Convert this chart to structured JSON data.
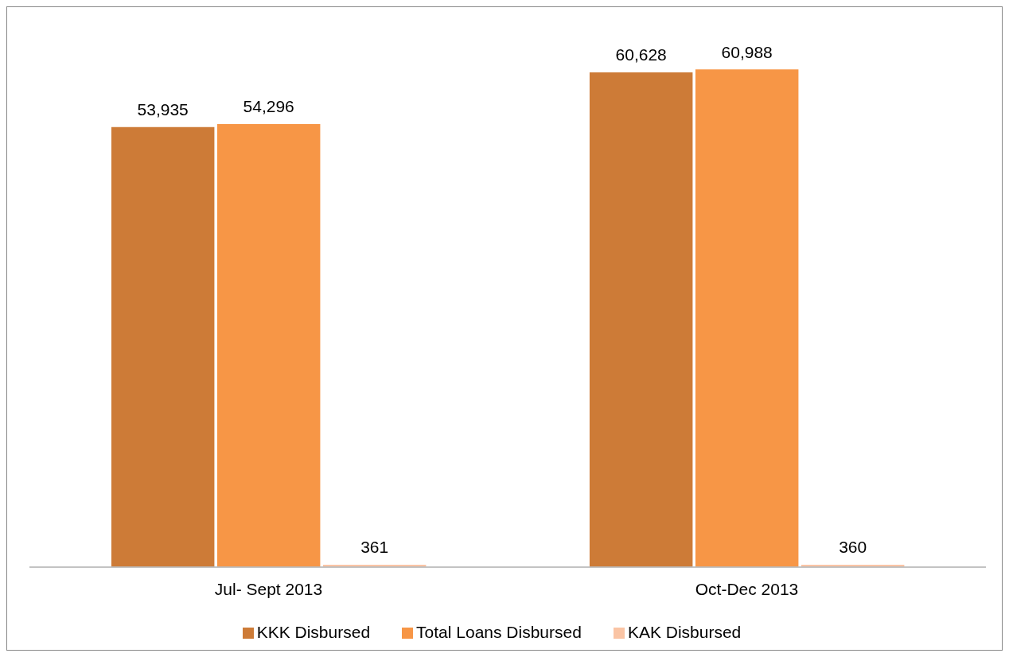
{
  "chart_data": {
    "type": "bar",
    "categories": [
      "Jul- Sept 2013",
      "Oct-Dec 2013"
    ],
    "series": [
      {
        "name": "KKK Disbursed",
        "color": "#cd7b37",
        "values": [
          53935,
          60628
        ],
        "value_labels": [
          "53,935",
          "60,628"
        ]
      },
      {
        "name": "Total Loans Disbursed",
        "color": "#f79646",
        "values": [
          54296,
          60988
        ],
        "value_labels": [
          "54,296",
          "60,988"
        ]
      },
      {
        "name": "KAK Disbursed",
        "color": "#fac4a4",
        "values": [
          361,
          360
        ],
        "value_labels": [
          "361",
          "360"
        ]
      }
    ],
    "legend": "bottom",
    "grid": false
  }
}
